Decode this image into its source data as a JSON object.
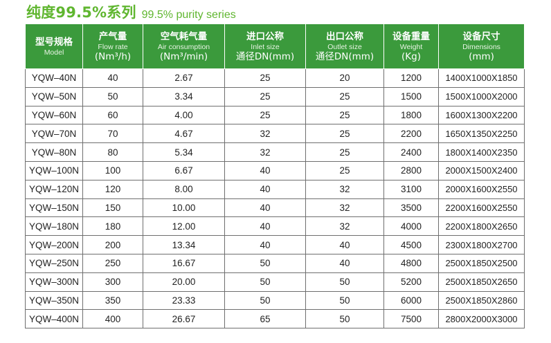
{
  "title": {
    "cn": "纯度99.5%系列",
    "en": "99.5% purity series"
  },
  "colors": {
    "accent_green": "#5fb62f",
    "header_bg": "#3b9a3c",
    "header_text": "#ffffff",
    "border": "#6e6e6e"
  },
  "table": {
    "headers": [
      {
        "cn": "型号规格",
        "en": "Model",
        "unit": ""
      },
      {
        "cn": "产气量",
        "en": "Flow rate",
        "unit": "(Nm³/h)"
      },
      {
        "cn": "空气耗气量",
        "en": "Air consumption",
        "unit": "(Nm³/min)"
      },
      {
        "cn": "进口公称",
        "en": "Inlet size",
        "unit": "通径DN(mm)"
      },
      {
        "cn": "出口公称",
        "en": "Outlet size",
        "unit": "通径DN(mm)"
      },
      {
        "cn": "设备重量",
        "en": "Weight",
        "unit": "(Kg)"
      },
      {
        "cn": "设备尺寸",
        "en": "Dimensions",
        "unit": "(mm)"
      }
    ],
    "rows": [
      [
        "YQW–40N",
        "40",
        "2.67",
        "25",
        "20",
        "1200",
        "1400X1000X1850"
      ],
      [
        "YQW–50N",
        "50",
        "3.34",
        "25",
        "25",
        "1500",
        "1500X1000X2000"
      ],
      [
        "YQW–60N",
        "60",
        "4.00",
        "25",
        "25",
        "1800",
        "1600X1300X2200"
      ],
      [
        "YQW–70N",
        "70",
        "4.67",
        "32",
        "25",
        "2200",
        "1650X1350X2250"
      ],
      [
        "YQW–80N",
        "80",
        "5.34",
        "32",
        "25",
        "2400",
        "1800X1400X2350"
      ],
      [
        "YQW–100N",
        "100",
        "6.67",
        "40",
        "25",
        "2800",
        "2000X1500X2400"
      ],
      [
        "YQW–120N",
        "120",
        "8.00",
        "40",
        "32",
        "3100",
        "2000X1600X2550"
      ],
      [
        "YQW–150N",
        "150",
        "10.00",
        "40",
        "32",
        "3500",
        "2200X1600X2550"
      ],
      [
        "YQW–180N",
        "180",
        "12.00",
        "40",
        "32",
        "4000",
        "2200X1800X2650"
      ],
      [
        "YQW–200N",
        "200",
        "13.34",
        "40",
        "40",
        "4500",
        "2300X1800X2700"
      ],
      [
        "YQW–250N",
        "250",
        "16.67",
        "50",
        "40",
        "4800",
        "2500X1850X2500"
      ],
      [
        "YQW–300N",
        "300",
        "20.00",
        "50",
        "50",
        "5200",
        "2500X1850X2650"
      ],
      [
        "YQW–350N",
        "350",
        "23.33",
        "50",
        "50",
        "6000",
        "2500X1850X2860"
      ],
      [
        "YQW–400N",
        "400",
        "26.67",
        "65",
        "50",
        "7500",
        "2800X2000X3000"
      ]
    ]
  }
}
